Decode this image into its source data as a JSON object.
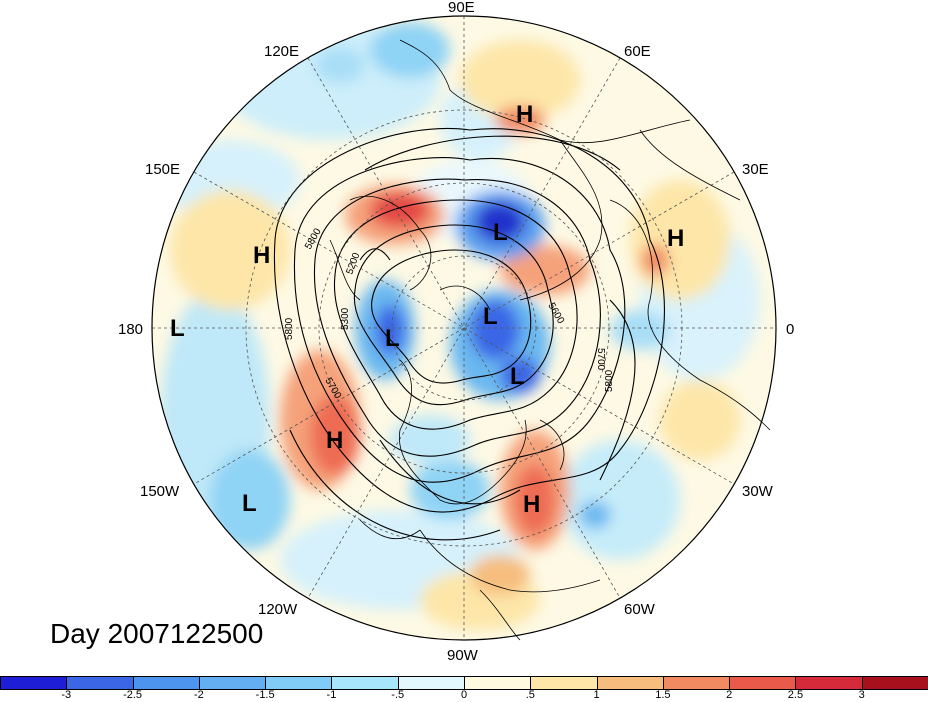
{
  "title": "Day 2007122500",
  "longitude_labels": {
    "lon_90e": "90E",
    "lon_60e": "60E",
    "lon_30e": "30E",
    "lon_0": "0",
    "lon_30w": "30W",
    "lon_60w": "60W",
    "lon_90w": "90W",
    "lon_120w": "120W",
    "lon_150w": "150W",
    "lon_180": "180",
    "lon_150e": "150E",
    "lon_120e": "120E"
  },
  "pressure_centers": [
    {
      "type": "H",
      "label": "H"
    },
    {
      "type": "H",
      "label": "H"
    },
    {
      "type": "H",
      "label": "H"
    },
    {
      "type": "H",
      "label": "H"
    },
    {
      "type": "H",
      "label": "H"
    },
    {
      "type": "L",
      "label": "L"
    },
    {
      "type": "L",
      "label": "L"
    },
    {
      "type": "L",
      "label": "L"
    },
    {
      "type": "L",
      "label": "L"
    },
    {
      "type": "L",
      "label": "L"
    },
    {
      "type": "L",
      "label": "L"
    }
  ],
  "contour_labels": [
    "5200",
    "5300",
    "5700",
    "5800",
    "5800",
    "5700",
    "5800",
    "5600"
  ],
  "colorbar": {
    "ticks": [
      "-3",
      "-2.5",
      "-2",
      "-1.5",
      "-1",
      "-.5",
      "0",
      ".5",
      "1",
      "1.5",
      "2",
      "2.5",
      "3"
    ],
    "colors": [
      "#1d1ed6",
      "#3b66e6",
      "#4d94ee",
      "#64aef2",
      "#80ccf7",
      "#a8e6fb",
      "#e2f8fd",
      "#fffae0",
      "#fde6a8",
      "#f6bd7e",
      "#f18a61",
      "#ea5a4a",
      "#d42a3a",
      "#a8101e"
    ]
  }
}
